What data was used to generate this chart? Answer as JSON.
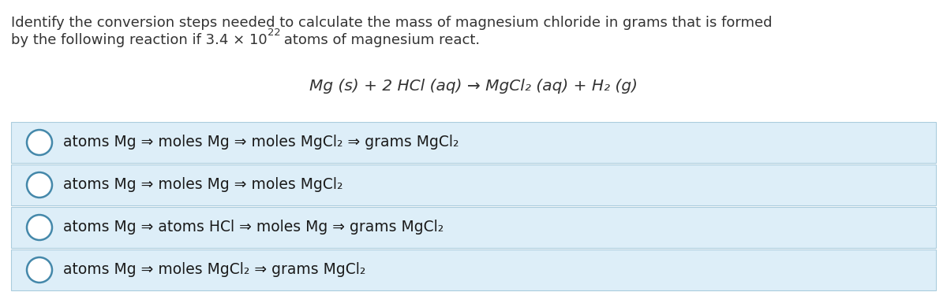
{
  "title_line1": "Identify the conversion steps needed to calculate the mass of magnesium chloride in grams that is formed",
  "title_line2_pre": "by the following reaction if 3.4 × 10",
  "title_superscript": "22",
  "title_line2_post": " atoms of magnesium react.",
  "equation": "Mg (s) + 2 HCl (aq) → MgCl₂ (aq) + H₂ (g)",
  "options": [
    "atoms Mg ⇒ moles Mg ⇒ moles MgCl₂ ⇒ grams MgCl₂",
    "atoms Mg ⇒ moles Mg ⇒ moles MgCl₂",
    "atoms Mg ⇒ atoms HCl ⇒ moles Mg ⇒ grams MgCl₂",
    "atoms Mg ⇒ moles MgCl₂ ⇒ grams MgCl₂"
  ],
  "bg_color": "#ffffff",
  "option_bg_color": "#ddeef8",
  "option_border_color": "#aaccdd",
  "text_color": "#333333",
  "option_text_color": "#1a1a1a",
  "circle_edge_color": "#4488aa",
  "title_fontsize": 13.0,
  "equation_fontsize": 14.5,
  "option_fontsize": 13.5
}
